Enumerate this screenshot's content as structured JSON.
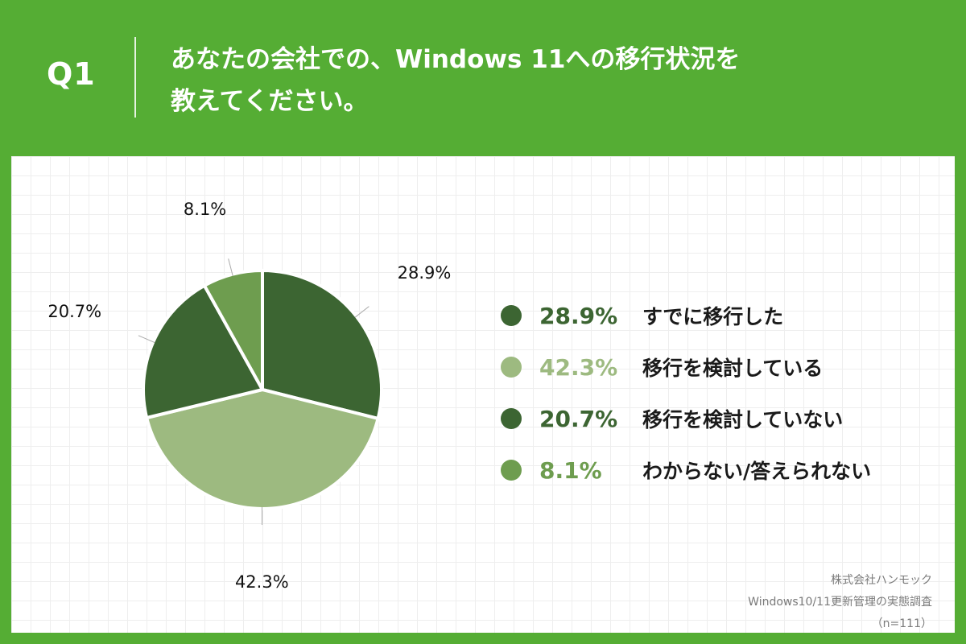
{
  "header": {
    "question_number": "Q1",
    "title_line1": "あなたの会社での、Windows 11への移行状況を",
    "title_line2": "教えてください。"
  },
  "chart_data": {
    "type": "pie",
    "categories": [
      "すでに移行した",
      "移行を検討している",
      "移行を検討していない",
      "わからない/答えられない"
    ],
    "values": [
      28.9,
      42.3,
      20.7,
      8.1
    ],
    "labels": [
      "28.9%",
      "42.3%",
      "20.7%",
      "8.1%"
    ],
    "colors": [
      "#3c6532",
      "#9dba80",
      "#3c6532",
      "#6e9d4f"
    ],
    "value_colors": [
      "#3c6532",
      "#9dba80",
      "#3c6532",
      "#6e9d4f"
    ],
    "legend_position": "right"
  },
  "footer": {
    "source_line1": "株式会社ハンモック",
    "source_line2": "Windows10/11更新管理の実態調査",
    "source_line3": "（n=111）"
  },
  "colors": {
    "background": "#55ad34",
    "panel": "#ffffff"
  }
}
